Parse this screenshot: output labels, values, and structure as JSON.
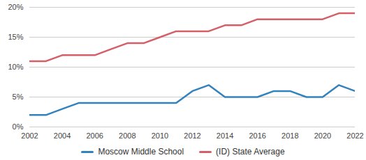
{
  "chart_data": {
    "type": "line",
    "x": [
      2002,
      2003,
      2004,
      2005,
      2006,
      2007,
      2008,
      2009,
      2010,
      2011,
      2012,
      2013,
      2014,
      2015,
      2016,
      2017,
      2018,
      2019,
      2020,
      2021,
      2022
    ],
    "series": [
      {
        "name": "Moscow Middle School",
        "color": "#3182bd",
        "values": [
          2,
          2,
          3,
          4,
          4,
          4,
          4,
          4,
          4,
          4,
          6,
          7,
          5,
          5,
          5,
          6,
          6,
          5,
          5,
          7,
          6
        ]
      },
      {
        "name": "(ID) State Average",
        "color": "#d45f69",
        "values": [
          11,
          11,
          12,
          12,
          12,
          13,
          14,
          14,
          15,
          16,
          16,
          16,
          17,
          17,
          18,
          18,
          18,
          18,
          18,
          19,
          19
        ]
      }
    ],
    "xlim": [
      2002,
      2022
    ],
    "xticks": [
      2002,
      2004,
      2006,
      2008,
      2010,
      2012,
      2014,
      2016,
      2018,
      2020,
      2022
    ],
    "ylim": [
      0,
      20
    ],
    "yticks": [
      {
        "value": 0,
        "label": "0%"
      },
      {
        "value": 5,
        "label": "5%"
      },
      {
        "value": 10,
        "label": "10%"
      },
      {
        "value": 15,
        "label": "15%"
      },
      {
        "value": 20,
        "label": "20%"
      }
    ],
    "grid": true,
    "legend": "bottom"
  }
}
